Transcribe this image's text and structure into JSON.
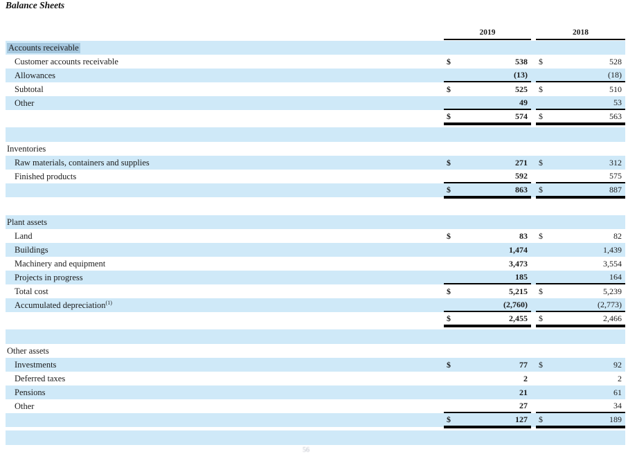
{
  "title": "Balance Sheets",
  "colors": {
    "row_blue": "#cfe9f8",
    "selection_highlight": "#a6c8df",
    "rule": "#000000",
    "text": "#1b1b1b"
  },
  "footer": {
    "page_marker": "56"
  },
  "table": {
    "columns": [
      "2019",
      "2018"
    ],
    "rows": [
      {
        "kind": "data",
        "shade": "blue",
        "indent": 0,
        "label": "Accounts receivable",
        "highlight": true,
        "d19": "",
        "v19": "",
        "d18": "",
        "v18": "",
        "underline": "none"
      },
      {
        "kind": "data",
        "shade": "white",
        "indent": 1,
        "label": "Customer accounts receivable",
        "d19": "$",
        "v19": "538",
        "d18": "$",
        "v18": "528",
        "underline": "none"
      },
      {
        "kind": "data",
        "shade": "blue",
        "indent": 1,
        "label": "Allowances",
        "d19": "",
        "v19": "(13)",
        "d18": "",
        "v18": "(18)",
        "underline": "single"
      },
      {
        "kind": "data",
        "shade": "white",
        "indent": 1,
        "label": "Subtotal",
        "d19": "$",
        "v19": "525",
        "d18": "$",
        "v18": "510",
        "underline": "none"
      },
      {
        "kind": "data",
        "shade": "blue",
        "indent": 1,
        "label": "Other",
        "d19": "",
        "v19": "49",
        "d18": "",
        "v18": "53",
        "underline": "single"
      },
      {
        "kind": "data",
        "shade": "white",
        "indent": 0,
        "label": "",
        "d19": "$",
        "v19": "574",
        "d18": "$",
        "v18": "563",
        "underline": "double"
      },
      {
        "kind": "gap",
        "shade": "blue"
      },
      {
        "kind": "data",
        "shade": "white",
        "indent": 0,
        "label": "Inventories",
        "d19": "",
        "v19": "",
        "d18": "",
        "v18": "",
        "underline": "none"
      },
      {
        "kind": "data",
        "shade": "blue",
        "indent": 1,
        "label": "Raw materials, containers and supplies",
        "d19": "$",
        "v19": "271",
        "d18": "$",
        "v18": "312",
        "underline": "none"
      },
      {
        "kind": "data",
        "shade": "white",
        "indent": 1,
        "label": "Finished products",
        "d19": "",
        "v19": "592",
        "d18": "",
        "v18": "575",
        "underline": "single"
      },
      {
        "kind": "data",
        "shade": "blue",
        "indent": 0,
        "label": "",
        "d19": "$",
        "v19": "863",
        "d18": "$",
        "v18": "887",
        "underline": "double"
      },
      {
        "kind": "gap",
        "shade": "white"
      },
      {
        "kind": "data",
        "shade": "blue",
        "indent": 0,
        "label": "Plant assets",
        "d19": "",
        "v19": "",
        "d18": "",
        "v18": "",
        "underline": "none"
      },
      {
        "kind": "data",
        "shade": "white",
        "indent": 1,
        "label": "Land",
        "d19": "$",
        "v19": "83",
        "d18": "$",
        "v18": "82",
        "underline": "none"
      },
      {
        "kind": "data",
        "shade": "blue",
        "indent": 1,
        "label": "Buildings",
        "d19": "",
        "v19": "1,474",
        "d18": "",
        "v18": "1,439",
        "underline": "none"
      },
      {
        "kind": "data",
        "shade": "white",
        "indent": 1,
        "label": "Machinery and equipment",
        "d19": "",
        "v19": "3,473",
        "d18": "",
        "v18": "3,554",
        "underline": "none"
      },
      {
        "kind": "data",
        "shade": "blue",
        "indent": 1,
        "label": "Projects in progress",
        "d19": "",
        "v19": "185",
        "d18": "",
        "v18": "164",
        "underline": "single"
      },
      {
        "kind": "data",
        "shade": "white",
        "indent": 1,
        "label": "Total cost",
        "d19": "$",
        "v19": "5,215",
        "d18": "$",
        "v18": "5,239",
        "underline": "none"
      },
      {
        "kind": "data",
        "shade": "blue",
        "indent": 1,
        "label": "Accumulated depreciation",
        "sup": "(1)",
        "d19": "",
        "v19": "(2,760)",
        "d18": "",
        "v18": "(2,773)",
        "underline": "single"
      },
      {
        "kind": "data",
        "shade": "white",
        "indent": 0,
        "label": "",
        "d19": "$",
        "v19": "2,455",
        "d18": "$",
        "v18": "2,466",
        "underline": "double"
      },
      {
        "kind": "gap",
        "shade": "blue"
      },
      {
        "kind": "data",
        "shade": "white",
        "indent": 0,
        "label": "Other assets",
        "d19": "",
        "v19": "",
        "d18": "",
        "v18": "",
        "underline": "none"
      },
      {
        "kind": "data",
        "shade": "blue",
        "indent": 1,
        "label": "Investments",
        "d19": "$",
        "v19": "77",
        "d18": "$",
        "v18": "92",
        "underline": "none"
      },
      {
        "kind": "data",
        "shade": "white",
        "indent": 1,
        "label": "Deferred taxes",
        "d19": "",
        "v19": "2",
        "d18": "",
        "v18": "2",
        "underline": "none"
      },
      {
        "kind": "data",
        "shade": "blue",
        "indent": 1,
        "label": "Pensions",
        "d19": "",
        "v19": "21",
        "d18": "",
        "v18": "61",
        "underline": "none"
      },
      {
        "kind": "data",
        "shade": "white",
        "indent": 1,
        "label": "Other",
        "d19": "",
        "v19": "27",
        "d18": "",
        "v18": "34",
        "underline": "single"
      },
      {
        "kind": "data",
        "shade": "blue",
        "indent": 0,
        "label": "",
        "d19": "$",
        "v19": "127",
        "d18": "$",
        "v18": "189",
        "underline": "double"
      },
      {
        "kind": "gap",
        "shade": "blue"
      }
    ]
  }
}
